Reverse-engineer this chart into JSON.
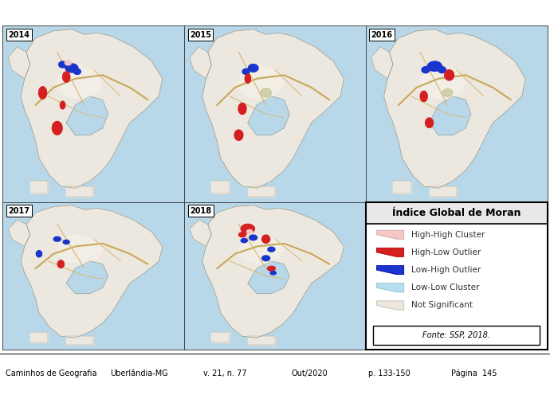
{
  "map_years": [
    "2014",
    "2015",
    "2016",
    "2017",
    "2018"
  ],
  "legend_title": "Índice Global de Moran",
  "legend_items": [
    {
      "label": "High-High Cluster",
      "color": "#f5c6c6",
      "edge": "#ccaaaa"
    },
    {
      "label": "High-Low Outlier",
      "color": "#d42020",
      "edge": "#aa0000"
    },
    {
      "label": "Low-High Outlier",
      "color": "#1a35cc",
      "edge": "#0000aa"
    },
    {
      "label": "Low-Low Cluster",
      "color": "#b8dff0",
      "edge": "#88bbcc"
    },
    {
      "label": "Not Significant",
      "color": "#ede8df",
      "edge": "#bbbbaa"
    }
  ],
  "fonte_text": "Fonte: SSP, 2018.",
  "footer_text": "Caminhos de Geografia",
  "footer_parts": [
    "Caminhos de Geografia",
    "Uberlândia-MG",
    "v. 21, n. 77",
    "Out/2020",
    "p. 133-150",
    "Página  145"
  ],
  "map_water_color": "#b8d8ea",
  "map_land_color": "#ede8df",
  "map_urban_color": "#f5f0e8",
  "road_color": "#c8a858",
  "road2_color": "#d4b870",
  "boundary_color": "#999988",
  "panel_bg": "#ffffff",
  "legend_bg": "#ffffff",
  "border_color": "#222222",
  "year_label_size": 7,
  "legend_title_size": 9,
  "legend_item_size": 7.5,
  "fonte_size": 7,
  "footer_size": 7
}
